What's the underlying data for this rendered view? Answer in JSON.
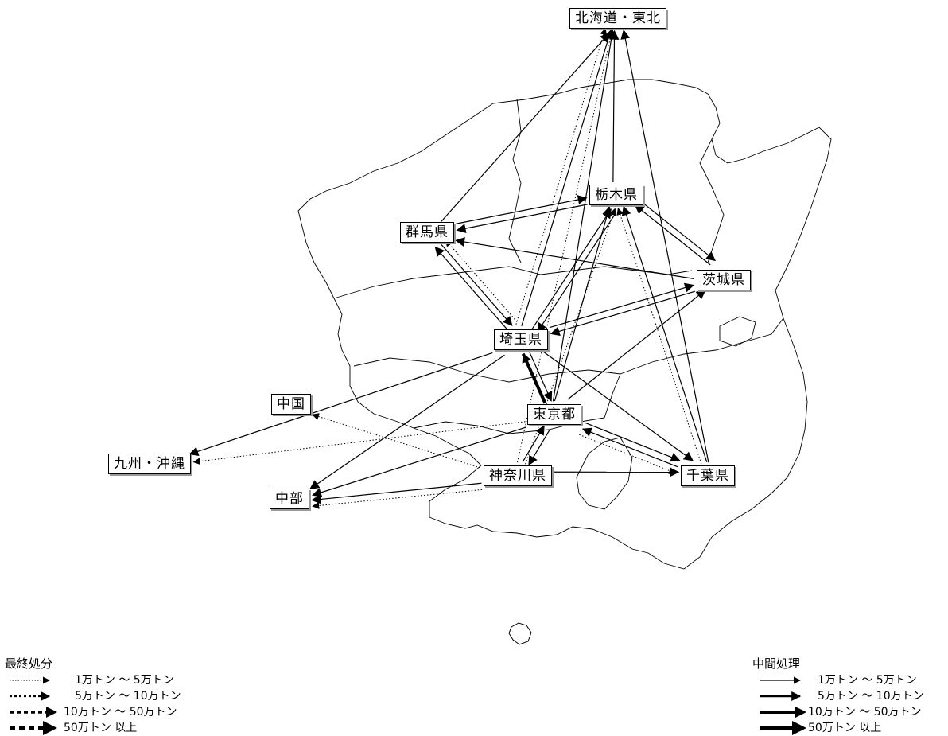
{
  "nodes": {
    "hokkaido_tohoku": "北海道・東北",
    "tochigi": "栃木県",
    "gunma": "群馬県",
    "ibaraki": "茨城県",
    "saitama": "埼玉県",
    "tokyo": "東京都",
    "kanagawa": "神奈川県",
    "chiba": "千葉県",
    "chugoku": "中国",
    "kyushu_okinawa": "九州・沖縄",
    "chubu": "中部"
  },
  "legend_final": {
    "title": "最終処分",
    "rows": [
      "1万トン ～ 5万トン",
      "5万トン ～ 10万トン",
      "10万トン ～ 50万トン",
      "50万トン 以上"
    ]
  },
  "legend_intermediate": {
    "title": "中間処理",
    "rows": [
      "1万トン ～ 5万トン",
      "5万トン ～ 10万トン",
      "10万トン ～ 50万トン",
      "50万トン 以上"
    ]
  },
  "flows": [
    {
      "from": "saitama",
      "to": "hokkaido_tohoku",
      "kind": "intermediate",
      "class": 1
    },
    {
      "from": "gunma",
      "to": "hokkaido_tohoku",
      "kind": "intermediate",
      "class": 1
    },
    {
      "from": "tochigi",
      "to": "hokkaido_tohoku",
      "kind": "intermediate",
      "class": 1
    },
    {
      "from": "chiba",
      "to": "hokkaido_tohoku",
      "kind": "intermediate",
      "class": 1
    },
    {
      "from": "tokyo",
      "to": "hokkaido_tohoku",
      "kind": "intermediate",
      "class": 1
    },
    {
      "from": "kanagawa",
      "to": "hokkaido_tohoku",
      "kind": "final",
      "class": 1
    },
    {
      "from": "saitama",
      "to": "hokkaido_tohoku",
      "kind": "final",
      "class": 1
    },
    {
      "from": "tokyo",
      "to": "saitama",
      "kind": "intermediate",
      "class": 3
    },
    {
      "from": "saitama",
      "to": "tokyo",
      "kind": "intermediate",
      "class": 1
    },
    {
      "from": "saitama",
      "to": "gunma",
      "kind": "intermediate",
      "class": 1
    },
    {
      "from": "gunma",
      "to": "saitama",
      "kind": "intermediate",
      "class": 1
    },
    {
      "from": "saitama",
      "to": "tochigi",
      "kind": "intermediate",
      "class": 1
    },
    {
      "from": "tochigi",
      "to": "saitama",
      "kind": "intermediate",
      "class": 1
    },
    {
      "from": "saitama",
      "to": "ibaraki",
      "kind": "intermediate",
      "class": 1
    },
    {
      "from": "ibaraki",
      "to": "saitama",
      "kind": "intermediate",
      "class": 1
    },
    {
      "from": "ibaraki",
      "to": "gunma",
      "kind": "intermediate",
      "class": 1
    },
    {
      "from": "ibaraki",
      "to": "tochigi",
      "kind": "intermediate",
      "class": 1
    },
    {
      "from": "tochigi",
      "to": "ibaraki",
      "kind": "intermediate",
      "class": 1
    },
    {
      "from": "tochigi",
      "to": "gunma",
      "kind": "intermediate",
      "class": 1
    },
    {
      "from": "gunma",
      "to": "tochigi",
      "kind": "intermediate",
      "class": 1
    },
    {
      "from": "tokyo",
      "to": "tochigi",
      "kind": "intermediate",
      "class": 1
    },
    {
      "from": "tokyo",
      "to": "ibaraki",
      "kind": "intermediate",
      "class": 1
    },
    {
      "from": "tokyo",
      "to": "kanagawa",
      "kind": "intermediate",
      "class": 1
    },
    {
      "from": "kanagawa",
      "to": "tokyo",
      "kind": "intermediate",
      "class": 1
    },
    {
      "from": "tokyo",
      "to": "chiba",
      "kind": "intermediate",
      "class": 1
    },
    {
      "from": "chiba",
      "to": "tokyo",
      "kind": "intermediate",
      "class": 1
    },
    {
      "from": "chiba",
      "to": "tochigi",
      "kind": "intermediate",
      "class": 1
    },
    {
      "from": "kanagawa",
      "to": "chiba",
      "kind": "intermediate",
      "class": 1
    },
    {
      "from": "saitama",
      "to": "chiba",
      "kind": "intermediate",
      "class": 1
    },
    {
      "from": "saitama",
      "to": "kyushu_okinawa",
      "kind": "intermediate",
      "class": 1
    },
    {
      "from": "saitama",
      "to": "chubu",
      "kind": "intermediate",
      "class": 1
    },
    {
      "from": "tokyo",
      "to": "chubu",
      "kind": "intermediate",
      "class": 1
    },
    {
      "from": "kanagawa",
      "to": "chubu",
      "kind": "intermediate",
      "class": 1
    },
    {
      "from": "kanagawa",
      "to": "chubu",
      "kind": "final",
      "class": 1
    },
    {
      "from": "kanagawa",
      "to": "chugoku",
      "kind": "final",
      "class": 1
    },
    {
      "from": "tokyo",
      "to": "kyushu_okinawa",
      "kind": "final",
      "class": 1
    },
    {
      "from": "tokyo",
      "to": "chiba",
      "kind": "final",
      "class": 1
    },
    {
      "from": "kanagawa",
      "to": "tochigi",
      "kind": "final",
      "class": 1
    },
    {
      "from": "chiba",
      "to": "tochigi",
      "kind": "final",
      "class": 1
    },
    {
      "from": "saitama",
      "to": "gunma",
      "kind": "final",
      "class": 1
    }
  ]
}
